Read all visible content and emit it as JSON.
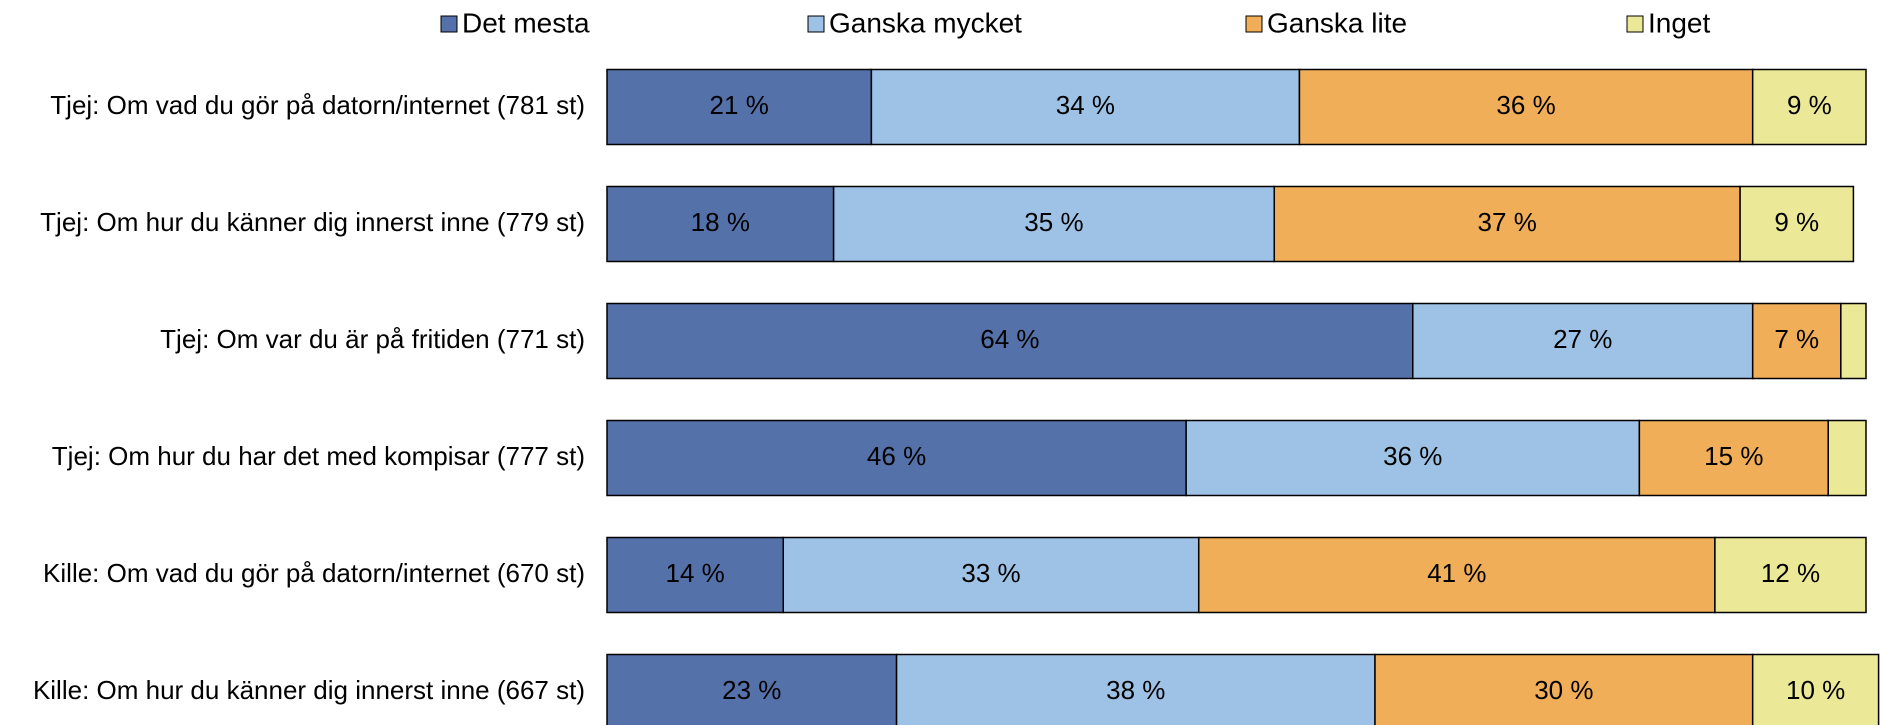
{
  "chart_data": {
    "type": "stacked-barh",
    "categories": [
      "Tjej: Om vad du gör på datorn/internet (781 st)",
      "Tjej: Om hur du känner dig innerst inne (779 st)",
      "Tjej: Om var du är på fritiden (771 st)",
      "Tjej: Om hur du har det med kompisar (777 st)",
      "Kille: Om vad du gör på datorn/internet (670 st)",
      "Kille: Om hur du känner dig innerst inne (667 st)"
    ],
    "series": [
      {
        "name": "Det mesta",
        "color": "#5571a9",
        "values": [
          21,
          18,
          64,
          46,
          14,
          23
        ],
        "value_labels": [
          "21 %",
          "18 %",
          "64 %",
          "46 %",
          "14 %",
          "23 %"
        ]
      },
      {
        "name": "Ganska mycket",
        "color": "#9dc2e5",
        "values": [
          34,
          35,
          27,
          36,
          33,
          38
        ],
        "value_labels": [
          "34 %",
          "35 %",
          "27 %",
          "36 %",
          "33 %",
          "38 %"
        ]
      },
      {
        "name": "Ganska lite",
        "color": "#f0ae58",
        "values": [
          36,
          37,
          7,
          15,
          41,
          30
        ],
        "value_labels": [
          "36 %",
          "37 %",
          "7 %",
          "15 %",
          "41 %",
          "30 %"
        ]
      },
      {
        "name": "Inget",
        "color": "#ebe897",
        "values": [
          9,
          9,
          2,
          3,
          12,
          10
        ],
        "value_labels": [
          "9 %",
          "9 %",
          null,
          null,
          "12 %",
          "10 %"
        ]
      }
    ],
    "xlim": [
      0,
      100
    ]
  }
}
